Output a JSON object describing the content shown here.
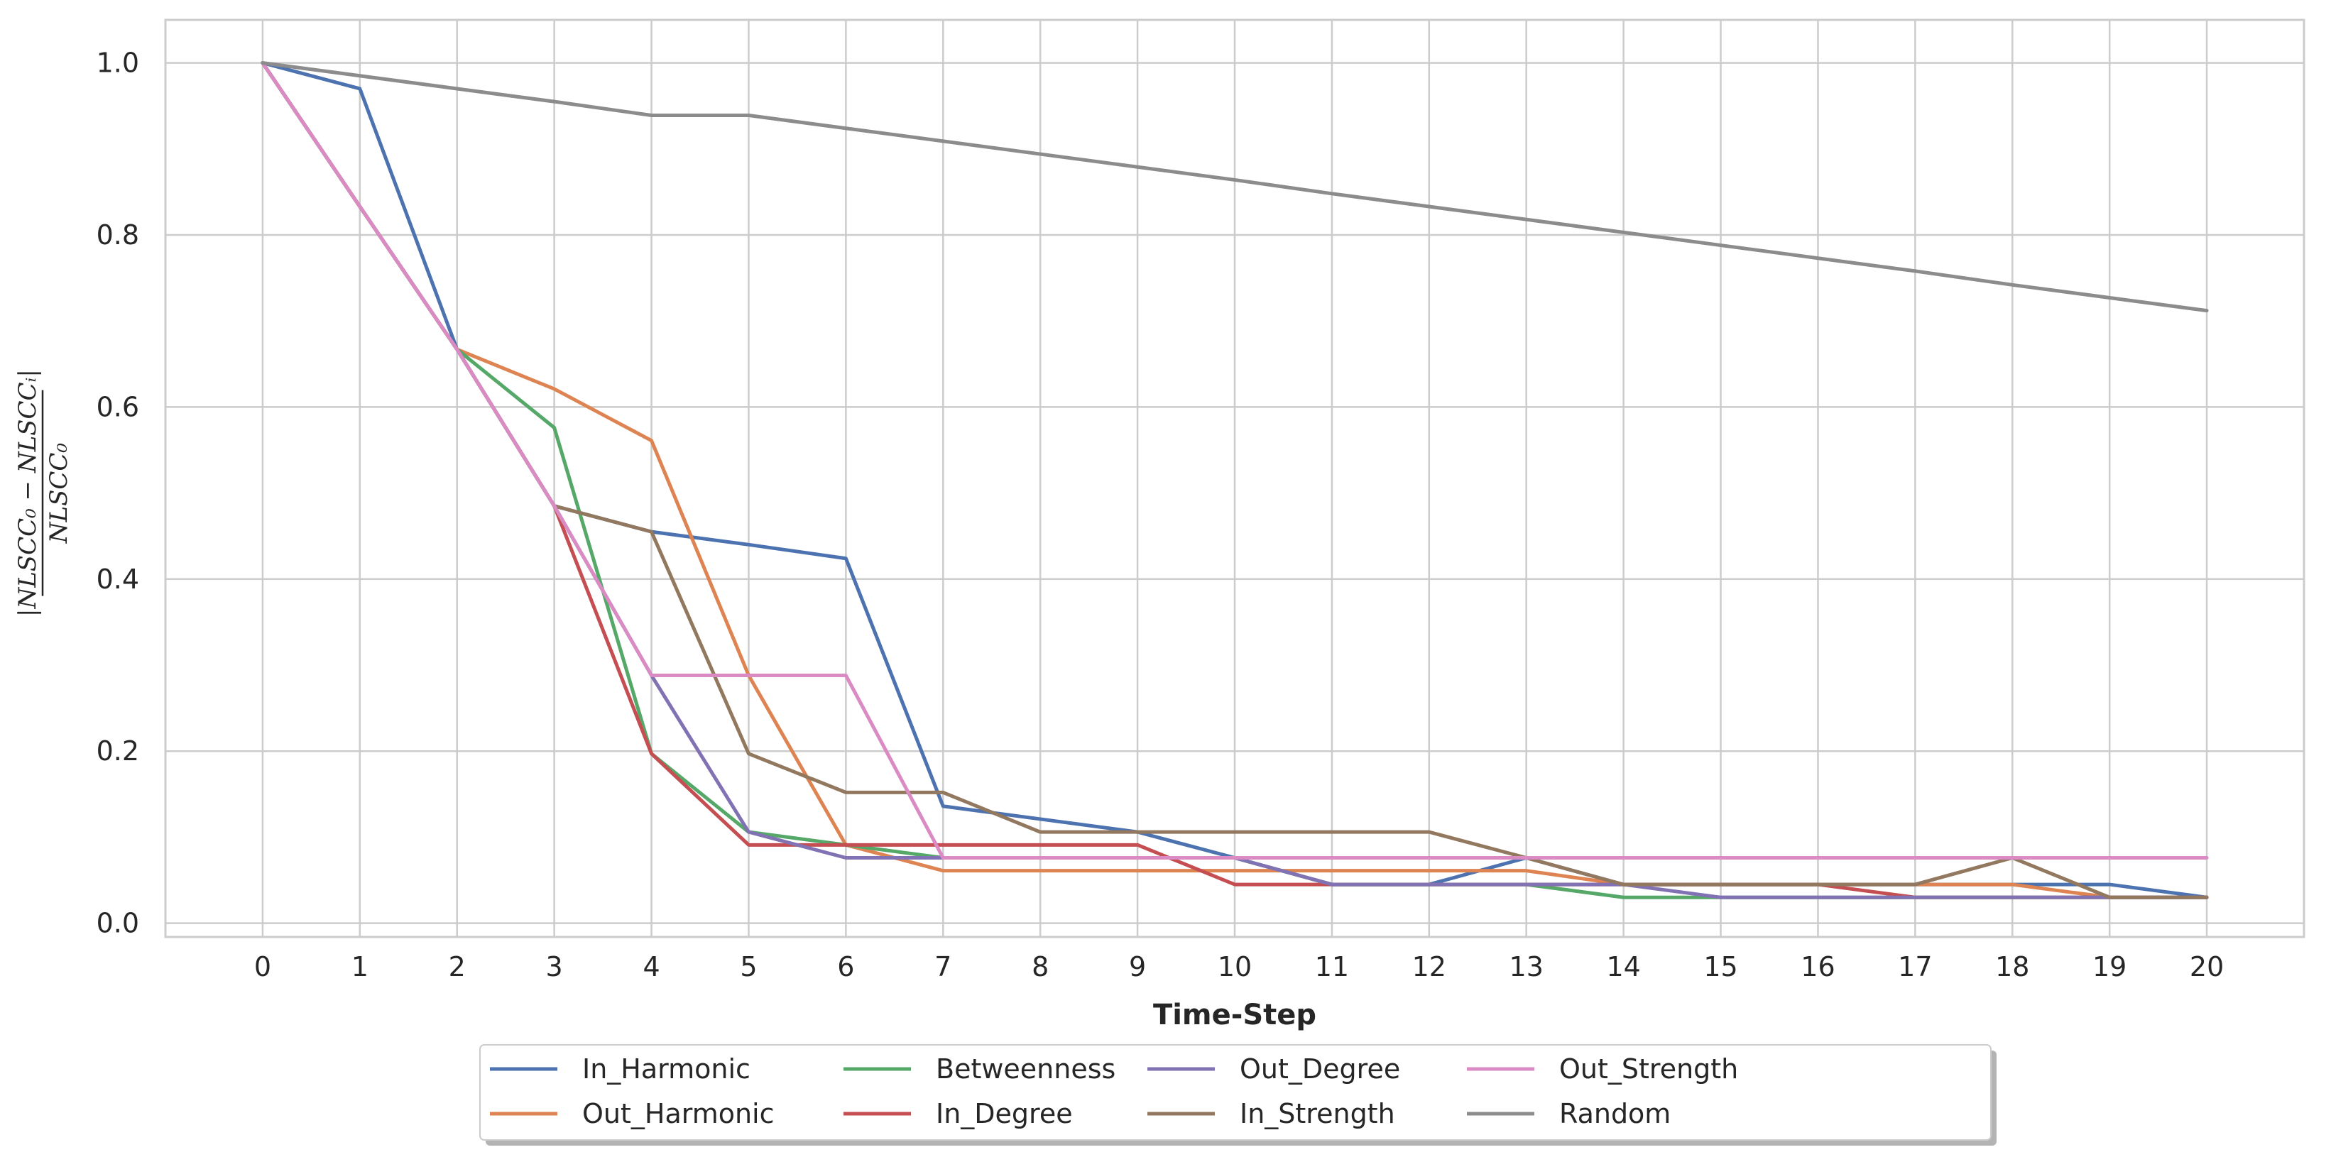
{
  "chart_data": {
    "type": "line",
    "title": "",
    "xlabel": "Time-Step",
    "ylabel": {
      "numerator": "|NLSCC₀ − NLSCCᵢ|",
      "denominator": "NLSCC₀"
    },
    "xlim": [
      -1,
      21
    ],
    "ylim": [
      -0.016,
      1.05
    ],
    "xticks": [
      0,
      1,
      2,
      3,
      4,
      5,
      6,
      7,
      8,
      9,
      10,
      11,
      12,
      13,
      14,
      15,
      16,
      17,
      18,
      19,
      20
    ],
    "xtick_labels": [
      "0",
      "1",
      "2",
      "3",
      "4",
      "5",
      "6",
      "7",
      "8",
      "9",
      "10",
      "11",
      "12",
      "13",
      "14",
      "15",
      "16",
      "17",
      "18",
      "19",
      "20"
    ],
    "yticks": [
      0.0,
      0.2,
      0.4,
      0.6,
      0.8,
      1.0
    ],
    "ytick_labels": [
      "0.0",
      "0.2",
      "0.4",
      "0.6",
      "0.8",
      "1.0"
    ],
    "grid": true,
    "legend_position": "bottom-center",
    "x": [
      0,
      1,
      2,
      3,
      4,
      5,
      6,
      7,
      8,
      9,
      10,
      11,
      12,
      13,
      14,
      15,
      16,
      17,
      18,
      19,
      20
    ],
    "series": [
      {
        "name": "In_Harmonic",
        "color": "#4c72b0",
        "values": [
          1.0,
          0.97,
          0.667,
          0.485,
          0.455,
          0.44,
          0.424,
          0.136,
          0.121,
          0.106,
          0.076,
          0.045,
          0.045,
          0.076,
          0.045,
          0.045,
          0.045,
          0.045,
          0.045,
          0.045,
          0.03
        ]
      },
      {
        "name": "Out_Harmonic",
        "color": "#dd8452",
        "values": [
          1.0,
          0.833,
          0.667,
          0.621,
          0.561,
          0.288,
          0.091,
          0.061,
          0.061,
          0.061,
          0.061,
          0.061,
          0.061,
          0.061,
          0.045,
          0.045,
          0.045,
          0.045,
          0.045,
          0.03,
          0.03
        ]
      },
      {
        "name": "Betweenness",
        "color": "#55a868",
        "values": [
          1.0,
          0.833,
          0.667,
          0.576,
          0.197,
          0.106,
          0.091,
          0.076,
          0.076,
          0.076,
          0.076,
          0.045,
          0.045,
          0.045,
          0.03,
          0.03,
          0.03,
          0.03,
          0.03,
          0.03,
          0.03
        ]
      },
      {
        "name": "In_Degree",
        "color": "#c44e52",
        "values": [
          1.0,
          0.833,
          0.667,
          0.485,
          0.197,
          0.091,
          0.091,
          0.091,
          0.091,
          0.091,
          0.045,
          0.045,
          0.045,
          0.045,
          0.045,
          0.045,
          0.045,
          0.03,
          0.03,
          0.03,
          0.03
        ]
      },
      {
        "name": "Out_Degree",
        "color": "#8172b3",
        "values": [
          1.0,
          0.833,
          0.667,
          0.485,
          0.288,
          0.106,
          0.076,
          0.076,
          0.076,
          0.076,
          0.076,
          0.045,
          0.045,
          0.045,
          0.045,
          0.03,
          0.03,
          0.03,
          0.03,
          0.03,
          0.03
        ]
      },
      {
        "name": "In_Strength",
        "color": "#937860",
        "values": [
          1.0,
          0.833,
          0.667,
          0.485,
          0.455,
          0.197,
          0.152,
          0.152,
          0.106,
          0.106,
          0.106,
          0.106,
          0.106,
          0.076,
          0.045,
          0.045,
          0.045,
          0.045,
          0.076,
          0.03,
          0.03
        ]
      },
      {
        "name": "Out_Strength",
        "color": "#da8bc3",
        "values": [
          1.0,
          0.833,
          0.667,
          0.485,
          0.288,
          0.288,
          0.288,
          0.076,
          0.076,
          0.076,
          0.076,
          0.076,
          0.076,
          0.076,
          0.076,
          0.076,
          0.076,
          0.076,
          0.076,
          0.076,
          0.076
        ]
      },
      {
        "name": "Random",
        "color": "#8c8c8c",
        "values": [
          1.0,
          0.985,
          0.97,
          0.955,
          0.939,
          0.939,
          0.924,
          0.909,
          0.894,
          0.879,
          0.864,
          0.848,
          0.833,
          0.818,
          0.803,
          0.788,
          0.773,
          0.758,
          0.742,
          0.727,
          0.712
        ]
      }
    ]
  }
}
